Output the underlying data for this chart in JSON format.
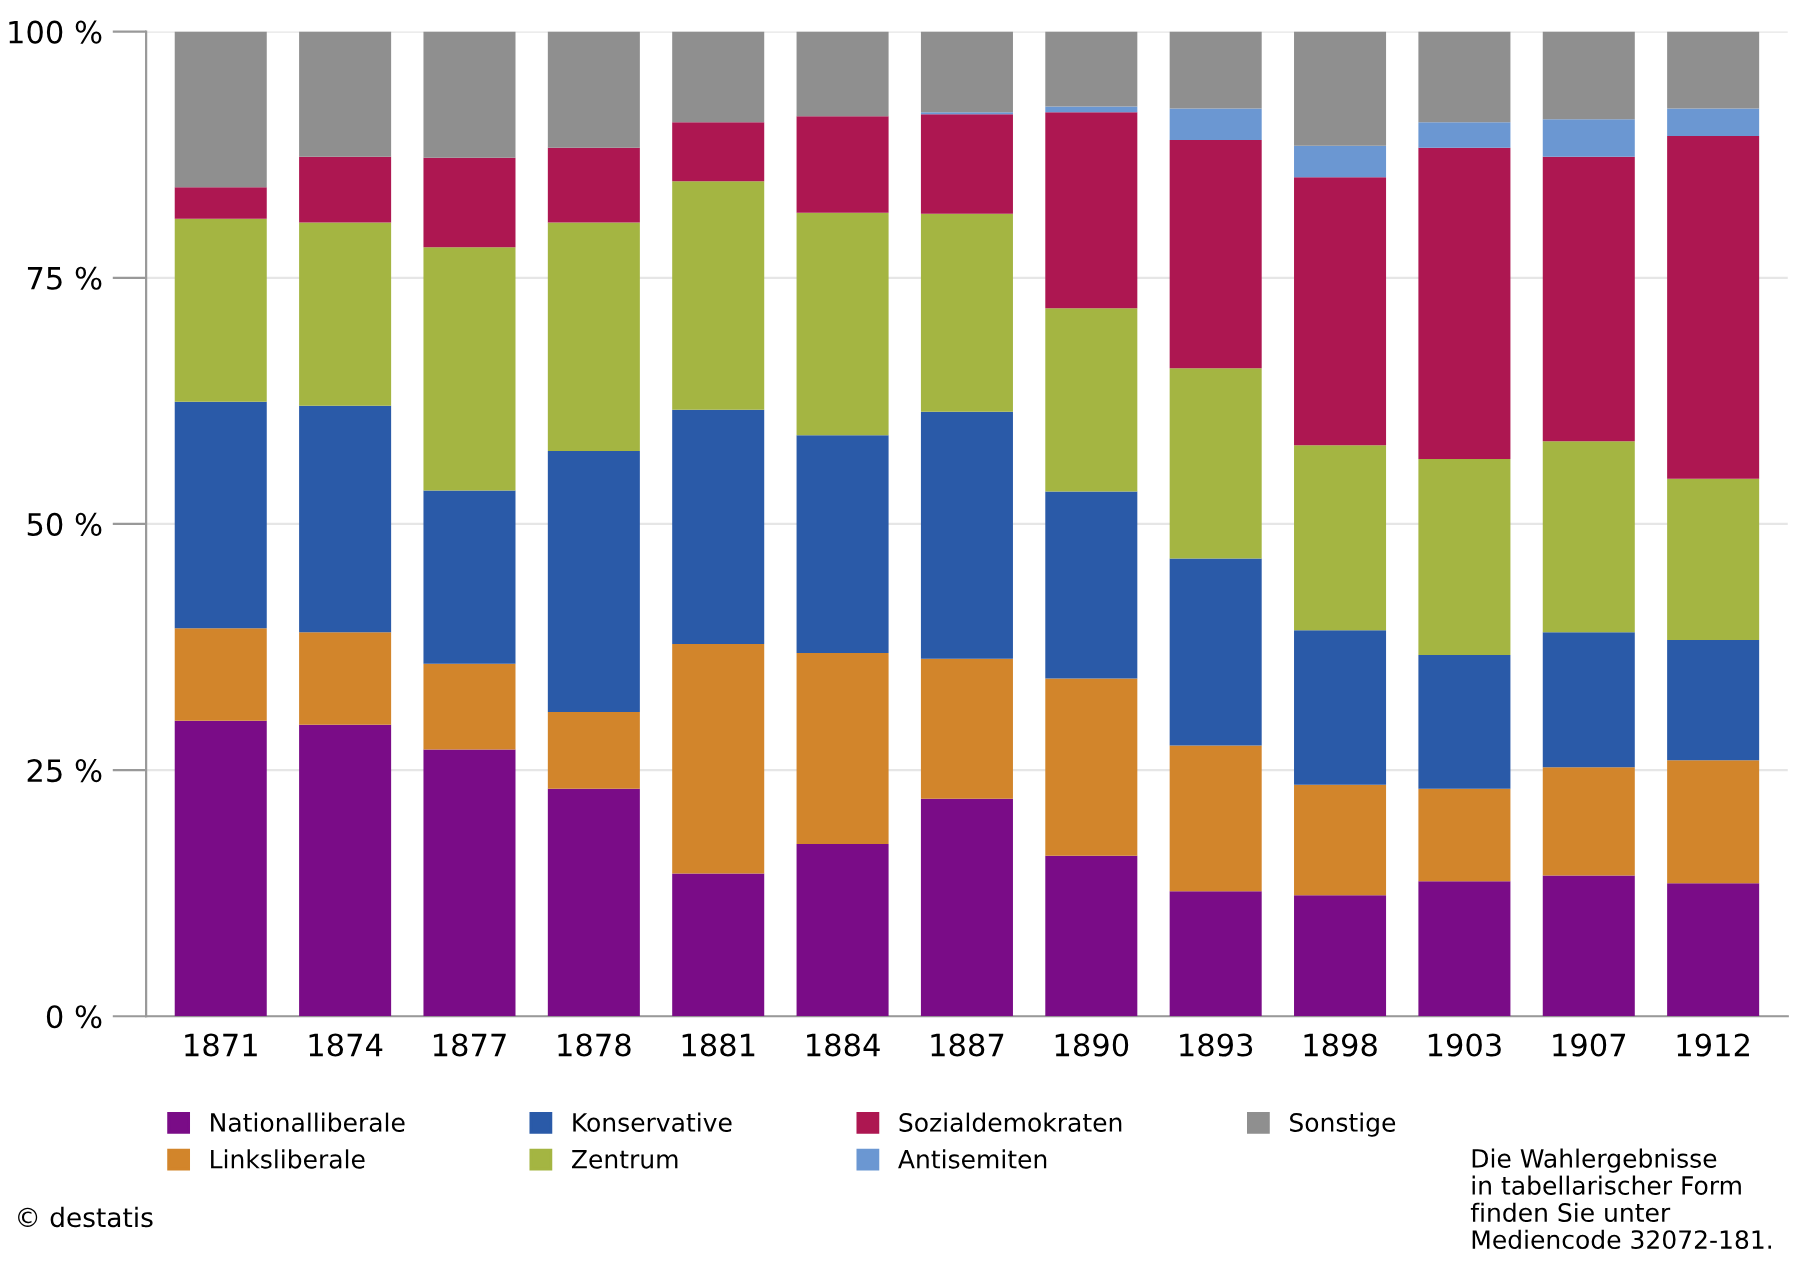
{
  "chart_data": {
    "type": "bar",
    "stacked": true,
    "categories": [
      "1871",
      "1874",
      "1877",
      "1878",
      "1881",
      "1884",
      "1887",
      "1890",
      "1893",
      "1898",
      "1903",
      "1907",
      "1912"
    ],
    "series": [
      {
        "name": "Nationalliberale",
        "color": "#7a0c87",
        "values": [
          30.0,
          29.6,
          27.1,
          23.1,
          14.5,
          17.5,
          22.1,
          16.3,
          12.7,
          12.3,
          13.7,
          14.3,
          13.5
        ]
      },
      {
        "name": "Linksliberale",
        "color": "#d2852b",
        "values": [
          9.4,
          9.4,
          8.7,
          7.8,
          23.3,
          19.4,
          14.2,
          18.0,
          14.8,
          11.2,
          9.4,
          11.0,
          12.5
        ]
      },
      {
        "name": "Konservative",
        "color": "#2a5aa8",
        "values": [
          23.0,
          23.0,
          17.6,
          26.5,
          23.8,
          22.1,
          25.1,
          19.0,
          19.0,
          15.7,
          13.6,
          13.7,
          12.2
        ]
      },
      {
        "name": "Zentrum",
        "color": "#a4b542",
        "values": [
          18.6,
          18.6,
          24.7,
          23.2,
          23.2,
          22.6,
          20.1,
          18.6,
          19.3,
          18.8,
          19.9,
          19.4,
          16.4
        ]
      },
      {
        "name": "Sozialdemokraten",
        "color": "#ad1751",
        "values": [
          3.2,
          6.7,
          9.1,
          7.6,
          6.0,
          9.8,
          10.1,
          19.9,
          23.2,
          27.2,
          31.6,
          28.9,
          34.8
        ]
      },
      {
        "name": "Antisemiten",
        "color": "#6b97d2",
        "values": [
          0,
          0,
          0,
          0,
          0,
          0,
          0.2,
          0.6,
          3.2,
          3.2,
          2.6,
          3.8,
          2.8
        ]
      },
      {
        "name": "Sonstige",
        "color": "#8f8f8f",
        "values": [
          15.8,
          12.7,
          12.8,
          11.8,
          9.2,
          8.6,
          8.2,
          7.6,
          7.8,
          11.6,
          9.2,
          8.9,
          7.8
        ]
      }
    ],
    "ylim": [
      0,
      100
    ],
    "yticks": [
      {
        "value": 0,
        "label": "0 %"
      },
      {
        "value": 25,
        "label": "25 %"
      },
      {
        "value": 50,
        "label": "50 %"
      },
      {
        "value": 75,
        "label": "75 %"
      },
      {
        "value": 100,
        "label": "100 %"
      }
    ],
    "grid": "y",
    "legend": "bottom",
    "annotations": [
      "© destatis",
      "Die Wahlergebnisse\nin tabellarischer Form\nfinden Sie unter\nMediencode 32072-181."
    ]
  }
}
